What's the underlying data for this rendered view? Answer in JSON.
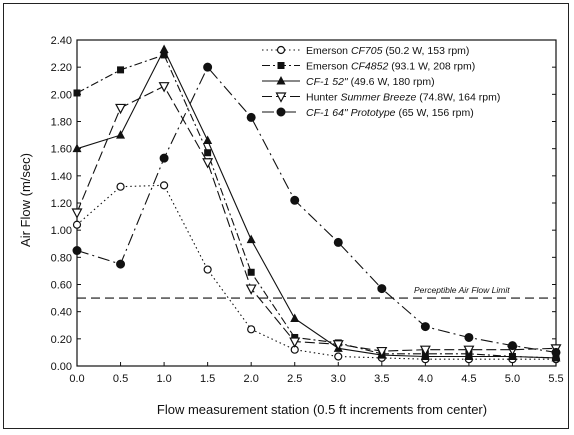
{
  "chart_data": {
    "type": "line",
    "title": "",
    "xlabel": "Flow measurement station (0.5 ft increments from center)",
    "ylabel": "Air Flow (m/sec)",
    "xlim": [
      0.0,
      5.5
    ],
    "ylim": [
      0.0,
      2.4
    ],
    "x_ticks": [
      "0.0",
      "0.5",
      "1.0",
      "1.5",
      "2.0",
      "2.5",
      "3.0",
      "3.5",
      "4.0",
      "4.5",
      "5.0",
      "5.5"
    ],
    "y_ticks": [
      "0.00",
      "0.20",
      "0.40",
      "0.60",
      "0.80",
      "1.00",
      "1.20",
      "1.40",
      "1.60",
      "1.80",
      "2.00",
      "2.20",
      "2.40"
    ],
    "x": [
      0.0,
      0.5,
      1.0,
      1.5,
      2.0,
      2.5,
      3.0,
      3.5,
      4.0,
      4.5,
      5.0,
      5.5
    ],
    "grid": false,
    "legend_position": "top-right",
    "series": [
      {
        "name_prefix": "Emerson ",
        "name_model": "CF705",
        "name_suffix": " (50.2 W, 153 rpm)",
        "marker": "circle-open",
        "dash": "dotted",
        "values": [
          1.04,
          1.32,
          1.33,
          0.71,
          0.27,
          0.12,
          0.07,
          0.06,
          0.05,
          0.05,
          0.05,
          0.05
        ]
      },
      {
        "name_prefix": "Emerson ",
        "name_model": "CF4852",
        "name_suffix": " (93.1 W, 208 rpm)",
        "marker": "square",
        "dash": "dash-dot",
        "values": [
          2.01,
          2.18,
          2.29,
          1.57,
          0.69,
          0.21,
          0.17,
          0.09,
          0.09,
          0.09,
          0.07,
          0.06
        ]
      },
      {
        "name_prefix": "",
        "name_model": "CF-1 52\"",
        "name_suffix": " (49.6 W, 180 rpm)",
        "marker": "triangle",
        "dash": "solid",
        "values": [
          1.6,
          1.7,
          2.33,
          1.66,
          0.93,
          0.35,
          0.13,
          0.08,
          0.07,
          0.07,
          0.07,
          0.06
        ]
      },
      {
        "name_prefix": "Hunter ",
        "name_model": "Summer Breeze",
        "name_suffix": " (74.8W, 164 rpm)",
        "marker": "triangle-down-open",
        "dash": "long-dash",
        "values": [
          1.13,
          1.9,
          2.06,
          1.5,
          0.57,
          0.18,
          0.16,
          0.11,
          0.12,
          0.12,
          0.12,
          0.13
        ]
      },
      {
        "name_prefix": "",
        "name_model": "CF-1 64\" Prototype",
        "name_suffix": " (65 W, 156 rpm)",
        "marker": "circle",
        "dash": "dash-dot-long",
        "values": [
          0.85,
          0.75,
          1.53,
          2.2,
          1.83,
          1.22,
          0.91,
          0.57,
          0.29,
          0.21,
          0.15,
          0.1
        ]
      }
    ],
    "reference_line": {
      "y": 0.5,
      "label": "Perceptible Air Flow Limit"
    }
  }
}
